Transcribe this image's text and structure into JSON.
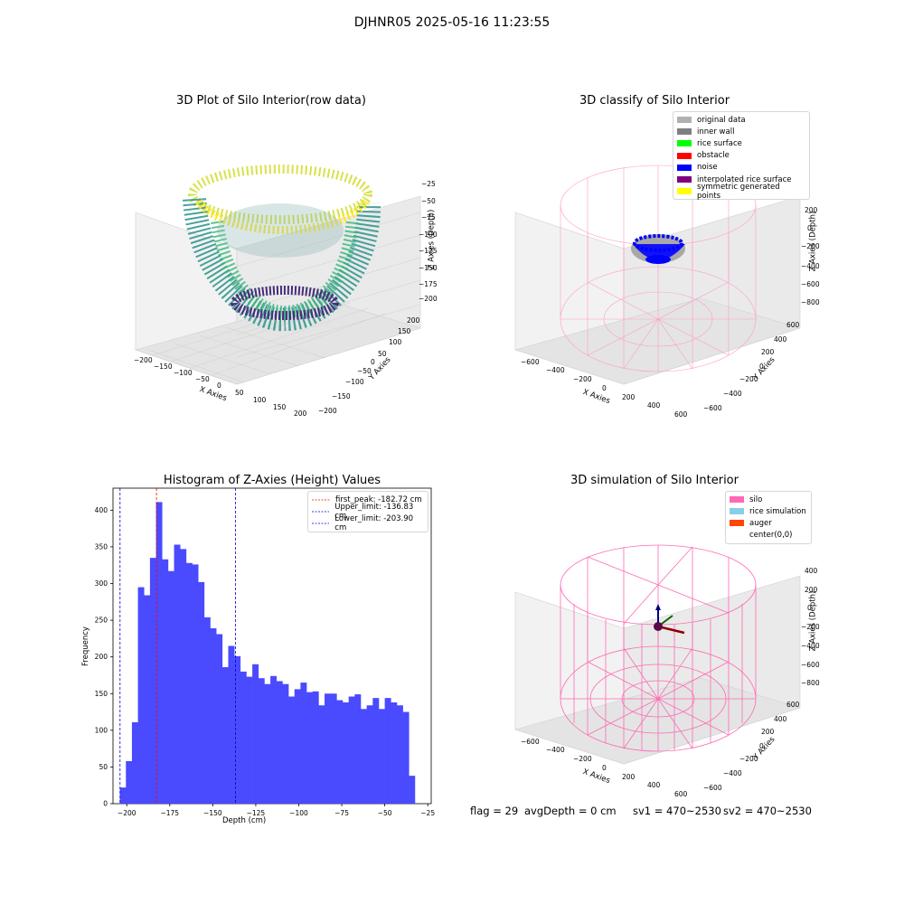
{
  "figure": {
    "suptitle": "DJHNR05 2025-05-16 11:23:55"
  },
  "footer": {
    "flag_text": "flag = 29",
    "avg_depth_text": "avgDepth = 0 cm",
    "sv1_text": "sv1 = 470~2530",
    "sv2_text": "sv2 = 470~2530"
  },
  "colors": {
    "histogram_bar": "#4a4aff",
    "first_peak_line": "#ff0000",
    "limit_lines": "#0000cc",
    "silo": "#ff69b4",
    "rice_simulation": "#87ceeb",
    "auger": "#ff4500"
  },
  "icons": [
    "3d-axes-box-icon",
    "cylinder-wireframe-icon",
    "bowl-point-cloud-icon",
    "axis-arrows-icon"
  ],
  "chart_data": [
    {
      "type": "scatter3d",
      "title": "3D Plot of Silo Interior(row data)",
      "xlabel": "X Axies",
      "ylabel": "Y Axies",
      "zlabel": "Z Axies (Depth)",
      "x_ticks": [
        "−200",
        "−150",
        "−100",
        "−50",
        "0",
        "50",
        "100",
        "150",
        "200"
      ],
      "y_ticks": [
        "−200",
        "−150",
        "−100",
        "−50",
        "0",
        "50",
        "100",
        "150",
        "200"
      ],
      "z_ticks": [
        "−25",
        "−50",
        "−75",
        "−100",
        "−125",
        "−150",
        "−175",
        "−200"
      ],
      "colormap": "viridis"
    },
    {
      "type": "scatter3d",
      "title": "3D classify of Silo Interior",
      "xlabel": "X Axies",
      "ylabel": "Y Axies",
      "zlabel": "Z Axies (Depth)",
      "x_ticks": [
        "−600",
        "−400",
        "−200",
        "0",
        "200",
        "400",
        "600"
      ],
      "y_ticks": [
        "−600",
        "−400",
        "−200",
        "0",
        "200",
        "400",
        "600"
      ],
      "z_ticks": [
        "200",
        "0",
        "−200",
        "−400",
        "−600",
        "−800"
      ],
      "legend": [
        {
          "label": "original data",
          "color": "#b0b0b0"
        },
        {
          "label": "inner wall",
          "color": "#808080"
        },
        {
          "label": "rice surface",
          "color": "#00ff00"
        },
        {
          "label": "obstacle",
          "color": "#ff0000"
        },
        {
          "label": "noise",
          "color": "#0000ff"
        },
        {
          "label": "interpolated rice surface",
          "color": "#800080"
        },
        {
          "label": "symmetric generated points",
          "color": "#ffff00"
        }
      ],
      "legend_placement": "top-right"
    },
    {
      "type": "bar",
      "title": "Histogram of Z-Axies (Height) Values",
      "xlabel": "Depth (cm)",
      "ylabel": "Frequency",
      "bin_start": -204,
      "bin_width": 3.5,
      "values": [
        22,
        58,
        111,
        295,
        284,
        335,
        411,
        333,
        317,
        353,
        347,
        328,
        326,
        302,
        254,
        239,
        231,
        186,
        215,
        201,
        180,
        173,
        190,
        171,
        163,
        174,
        167,
        163,
        146,
        156,
        165,
        152,
        153,
        134,
        150,
        150,
        141,
        138,
        146,
        149,
        129,
        134,
        144,
        129,
        144,
        138,
        134,
        125,
        38
      ],
      "xlim": [
        -208,
        -23
      ],
      "ylim": [
        0,
        430
      ],
      "x_ticks": [
        "−200",
        "−175",
        "−150",
        "−125",
        "−100",
        "−75",
        "−50",
        "−25"
      ],
      "y_ticks": [
        "0",
        "50",
        "100",
        "150",
        "200",
        "250",
        "300",
        "350",
        "400"
      ],
      "vlines": [
        {
          "label": "first_peak: -182.72 cm",
          "x": -182.72,
          "color": "#ff0000"
        },
        {
          "label": "Upper_limit: -136.83 cm",
          "x": -136.83,
          "color": "#0000cc"
        },
        {
          "label": "Lower_limit: -203.90 cm",
          "x": -203.9,
          "color": "#0000cc"
        }
      ],
      "legend_placement": "top-right"
    },
    {
      "type": "wireframe3d",
      "title": "3D simulation of Silo Interior",
      "xlabel": "X Axies",
      "ylabel": "Y Axies",
      "zlabel": "Z Axies (Depth)",
      "x_ticks": [
        "−600",
        "−400",
        "−200",
        "0",
        "200",
        "400",
        "600"
      ],
      "y_ticks": [
        "−600",
        "−400",
        "−200",
        "0",
        "200",
        "400",
        "600"
      ],
      "z_ticks": [
        "400",
        "200",
        "0",
        "−200",
        "−400",
        "−600",
        "−800"
      ],
      "legend": [
        {
          "label": "silo",
          "color": "#ff69b4"
        },
        {
          "label": "rice simulation",
          "color": "#87ceeb"
        },
        {
          "label": "auger",
          "color": "#ff4500"
        },
        {
          "label": "center(0,0)",
          "color": "#ffffff"
        }
      ],
      "legend_placement": "top-right"
    }
  ]
}
